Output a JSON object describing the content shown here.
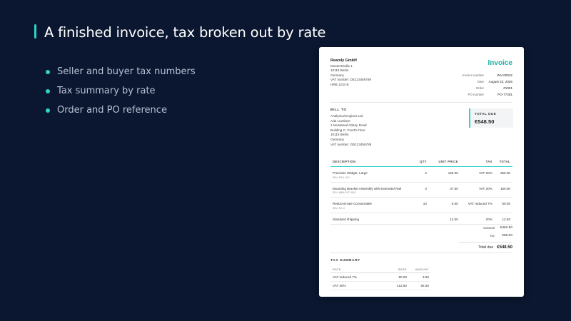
{
  "slide": {
    "title": "A finished invoice, tax broken out by rate",
    "bullets": [
      "Seller and buyer tax numbers",
      "Tax summary by rate",
      "Order and PO reference"
    ],
    "accent_color": "#2fd3c9",
    "background_color": "#0b1730"
  },
  "invoice": {
    "seller": {
      "name": "Reamly GmbH",
      "lines": [
        "Musterstraße 1",
        "10115 Berlin",
        "Germany",
        "VAT number: DE123456789",
        "HRB 1234 B"
      ]
    },
    "title": "Invoice",
    "meta": [
      {
        "label": "Invoice number",
        "value": "INV-00042"
      },
      {
        "label": "Date",
        "value": "August 23, 2026"
      },
      {
        "label": "Order",
        "value": "#1001"
      },
      {
        "label": "PO number",
        "value": "PO-77281"
      }
    ],
    "bill_to": {
      "heading": "BILL TO",
      "lines": [
        "Analytical Engines Ltd",
        "Ada Lovelace",
        "1 Newstead Abbey Road",
        "Building C, Fourth Floor",
        "10115 Berlin",
        "Germany",
        "VAT number: GB123456789"
      ]
    },
    "total_due": {
      "label": "TOTAL DUE",
      "value": "€548.50"
    },
    "line_items": {
      "headers": {
        "description": "DESCRIPTION",
        "qty": "QTY",
        "unit_price": "UNIT PRICE",
        "tax": "TAX",
        "total": "TOTAL"
      },
      "rows": [
        {
          "description": "Precision Widget, Large",
          "sku": "SKU: PW-L-001",
          "qty": "2",
          "unit_price": "125.00",
          "tax": "VAT 20%",
          "total": "250.00"
        },
        {
          "description": "Mounting Bracket Assembly with Extended Rail",
          "sku": "SKU: MBA-EXT-0042",
          "qty": "4",
          "unit_price": "37.50",
          "tax": "VAT 20%",
          "total": "150.00"
        },
        {
          "description": "Reduced-rate Consumable",
          "sku": "SKU: RC-4",
          "qty": "10",
          "unit_price": "5.00",
          "tax": "VAT reduced 7%",
          "total": "50.00"
        },
        {
          "description": "Standard shipping",
          "sku": "",
          "qty": "",
          "unit_price": "12.50",
          "tax": "20%",
          "total": "12.50"
        }
      ]
    },
    "totals": {
      "subtotal_label": "Subtotal",
      "subtotal": "€462.50",
      "tax_label": "Tax",
      "tax": "€86.00",
      "total_label": "Total due",
      "total": "€548.50"
    },
    "tax_summary": {
      "heading": "TAX SUMMARY",
      "headers": {
        "rate": "RATE",
        "base": "BASE",
        "amount": "AMOUNT"
      },
      "rows": [
        {
          "rate": "VAT reduced 7%",
          "base": "50.00",
          "amount": "3.50"
        },
        {
          "rate": "VAT 20%",
          "base": "412.50",
          "amount": "82.50"
        }
      ]
    }
  }
}
